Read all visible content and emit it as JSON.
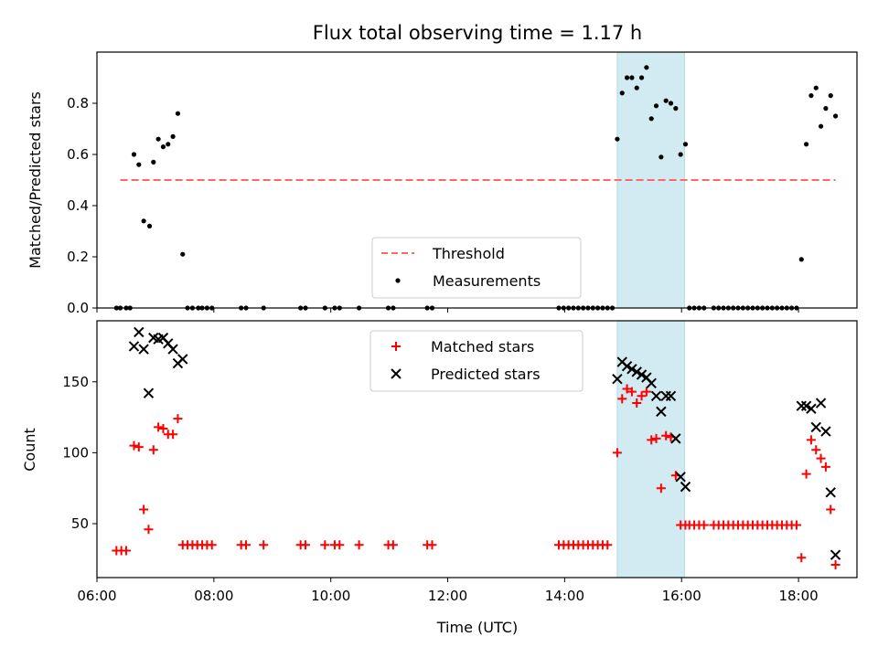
{
  "chart_data": [
    {
      "type": "scatter",
      "title": "Flux total observing time = 1.17 h",
      "xlabel": "",
      "ylabel": "Matched/Predicted stars",
      "xlim": [
        "06:00",
        "19:00"
      ],
      "ylim": [
        0,
        1.0
      ],
      "y_ticks": [
        "0.0",
        "0.2",
        "0.4",
        "0.6",
        "0.8"
      ],
      "highlight_band": {
        "x_start": "14:54",
        "x_end": "16:03",
        "color": "#add8e6"
      },
      "legend": {
        "position": "lower-center",
        "entries": [
          "Threshold",
          "Measurements"
        ]
      },
      "threshold": {
        "name": "Threshold",
        "y": 0.5,
        "x_start": "06:24",
        "x_end": "18:38",
        "color": "#ff6666",
        "style": "dashed"
      },
      "series": [
        {
          "name": "Measurements",
          "color": "#000000",
          "marker": "dot",
          "points": [
            [
              "06:20",
              0.0
            ],
            [
              "06:24",
              0.0
            ],
            [
              "06:30",
              0.0
            ],
            [
              "06:34",
              0.0
            ],
            [
              "06:38",
              0.6
            ],
            [
              "06:43",
              0.56
            ],
            [
              "06:48",
              0.34
            ],
            [
              "06:54",
              0.32
            ],
            [
              "06:58",
              0.57
            ],
            [
              "07:03",
              0.66
            ],
            [
              "07:08",
              0.63
            ],
            [
              "07:13",
              0.64
            ],
            [
              "07:18",
              0.67
            ],
            [
              "07:23",
              0.76
            ],
            [
              "07:28",
              0.21
            ],
            [
              "07:33",
              0.0
            ],
            [
              "07:38",
              0.0
            ],
            [
              "07:44",
              0.0
            ],
            [
              "07:48",
              0.0
            ],
            [
              "07:53",
              0.0
            ],
            [
              "07:58",
              0.0
            ],
            [
              "08:28",
              0.0
            ],
            [
              "08:33",
              0.0
            ],
            [
              "08:51",
              0.0
            ],
            [
              "09:29",
              0.0
            ],
            [
              "09:34",
              0.0
            ],
            [
              "09:54",
              0.0
            ],
            [
              "10:04",
              0.0
            ],
            [
              "10:09",
              0.0
            ],
            [
              "10:29",
              0.0
            ],
            [
              "10:59",
              0.0
            ],
            [
              "11:04",
              0.0
            ],
            [
              "11:39",
              0.0
            ],
            [
              "11:44",
              0.0
            ],
            [
              "13:54",
              0.0
            ],
            [
              "13:59",
              0.0
            ],
            [
              "14:04",
              0.0
            ],
            [
              "14:09",
              0.0
            ],
            [
              "14:14",
              0.0
            ],
            [
              "14:19",
              0.0
            ],
            [
              "14:24",
              0.0
            ],
            [
              "14:29",
              0.0
            ],
            [
              "14:34",
              0.0
            ],
            [
              "14:39",
              0.0
            ],
            [
              "14:44",
              0.0
            ],
            [
              "14:49",
              0.0
            ],
            [
              "14:54",
              0.66
            ],
            [
              "14:59",
              0.84
            ],
            [
              "15:04",
              0.9
            ],
            [
              "15:09",
              0.9
            ],
            [
              "15:14",
              0.86
            ],
            [
              "15:19",
              0.9
            ],
            [
              "15:24",
              0.94
            ],
            [
              "15:29",
              0.74
            ],
            [
              "15:34",
              0.79
            ],
            [
              "15:39",
              0.59
            ],
            [
              "15:44",
              0.81
            ],
            [
              "15:49",
              0.8
            ],
            [
              "15:54",
              0.78
            ],
            [
              "15:59",
              0.6
            ],
            [
              "16:04",
              0.64
            ],
            [
              "16:08",
              0.0
            ],
            [
              "16:13",
              0.0
            ],
            [
              "16:18",
              0.0
            ],
            [
              "16:23",
              0.0
            ],
            [
              "16:33",
              0.0
            ],
            [
              "16:38",
              0.0
            ],
            [
              "16:43",
              0.0
            ],
            [
              "16:48",
              0.0
            ],
            [
              "16:53",
              0.0
            ],
            [
              "16:58",
              0.0
            ],
            [
              "17:03",
              0.0
            ],
            [
              "17:08",
              0.0
            ],
            [
              "17:13",
              0.0
            ],
            [
              "17:18",
              0.0
            ],
            [
              "17:23",
              0.0
            ],
            [
              "17:28",
              0.0
            ],
            [
              "17:33",
              0.0
            ],
            [
              "17:38",
              0.0
            ],
            [
              "17:43",
              0.0
            ],
            [
              "17:48",
              0.0
            ],
            [
              "17:53",
              0.0
            ],
            [
              "17:58",
              0.0
            ],
            [
              "18:03",
              0.19
            ],
            [
              "18:08",
              0.64
            ],
            [
              "18:13",
              0.83
            ],
            [
              "18:18",
              0.86
            ],
            [
              "18:23",
              0.71
            ],
            [
              "18:28",
              0.78
            ],
            [
              "18:33",
              0.83
            ],
            [
              "18:38",
              0.75
            ]
          ]
        }
      ]
    },
    {
      "type": "scatter",
      "title": "",
      "xlabel": "Time (UTC)",
      "ylabel": "Count",
      "xlim": [
        "06:00",
        "19:00"
      ],
      "ylim": [
        12,
        193
      ],
      "x_ticks": [
        "06:00",
        "08:00",
        "10:00",
        "12:00",
        "14:00",
        "16:00",
        "18:00"
      ],
      "y_ticks": [
        "50",
        "100",
        "150"
      ],
      "highlight_band": {
        "x_start": "14:54",
        "x_end": "16:03",
        "color": "#add8e6"
      },
      "legend": {
        "position": "upper-center",
        "entries": [
          "Matched stars",
          "Predicted stars"
        ]
      },
      "series": [
        {
          "name": "Matched stars",
          "color": "#ff0000",
          "marker": "plus",
          "points": [
            [
              "06:20",
              31
            ],
            [
              "06:25",
              31
            ],
            [
              "06:30",
              31
            ],
            [
              "06:38",
              105
            ],
            [
              "06:43",
              104
            ],
            [
              "06:48",
              60
            ],
            [
              "06:53",
              46
            ],
            [
              "06:58",
              102
            ],
            [
              "07:03",
              118
            ],
            [
              "07:08",
              117
            ],
            [
              "07:13",
              113
            ],
            [
              "07:18",
              113
            ],
            [
              "07:23",
              124
            ],
            [
              "07:28",
              35
            ],
            [
              "07:33",
              35
            ],
            [
              "07:38",
              35
            ],
            [
              "07:43",
              35
            ],
            [
              "07:48",
              35
            ],
            [
              "07:53",
              35
            ],
            [
              "07:58",
              35
            ],
            [
              "08:28",
              35
            ],
            [
              "08:33",
              35
            ],
            [
              "08:51",
              35
            ],
            [
              "09:29",
              35
            ],
            [
              "09:34",
              35
            ],
            [
              "09:54",
              35
            ],
            [
              "10:04",
              35
            ],
            [
              "10:09",
              35
            ],
            [
              "10:29",
              35
            ],
            [
              "10:59",
              35
            ],
            [
              "11:04",
              35
            ],
            [
              "11:39",
              35
            ],
            [
              "11:44",
              35
            ],
            [
              "13:54",
              35
            ],
            [
              "13:59",
              35
            ],
            [
              "14:04",
              35
            ],
            [
              "14:09",
              35
            ],
            [
              "14:14",
              35
            ],
            [
              "14:19",
              35
            ],
            [
              "14:24",
              35
            ],
            [
              "14:29",
              35
            ],
            [
              "14:34",
              35
            ],
            [
              "14:39",
              35
            ],
            [
              "14:44",
              35
            ],
            [
              "14:54",
              100
            ],
            [
              "14:59",
              138
            ],
            [
              "15:04",
              145
            ],
            [
              "15:09",
              143
            ],
            [
              "15:14",
              135
            ],
            [
              "15:19",
              140
            ],
            [
              "15:24",
              143
            ],
            [
              "15:29",
              109
            ],
            [
              "15:34",
              110
            ],
            [
              "15:39",
              75
            ],
            [
              "15:44",
              112
            ],
            [
              "15:49",
              111
            ],
            [
              "15:54",
              84
            ],
            [
              "15:59",
              49
            ],
            [
              "16:04",
              49
            ],
            [
              "16:08",
              49
            ],
            [
              "16:13",
              49
            ],
            [
              "16:18",
              49
            ],
            [
              "16:23",
              49
            ],
            [
              "16:33",
              49
            ],
            [
              "16:38",
              49
            ],
            [
              "16:43",
              49
            ],
            [
              "16:48",
              49
            ],
            [
              "16:53",
              49
            ],
            [
              "16:58",
              49
            ],
            [
              "17:03",
              49
            ],
            [
              "17:08",
              49
            ],
            [
              "17:13",
              49
            ],
            [
              "17:18",
              49
            ],
            [
              "17:23",
              49
            ],
            [
              "17:28",
              49
            ],
            [
              "17:33",
              49
            ],
            [
              "17:38",
              49
            ],
            [
              "17:43",
              49
            ],
            [
              "17:48",
              49
            ],
            [
              "17:53",
              49
            ],
            [
              "17:58",
              49
            ],
            [
              "18:03",
              26
            ],
            [
              "18:08",
              85
            ],
            [
              "18:13",
              109
            ],
            [
              "18:18",
              102
            ],
            [
              "18:23",
              96
            ],
            [
              "18:28",
              90
            ],
            [
              "18:33",
              60
            ],
            [
              "18:38",
              21
            ]
          ]
        },
        {
          "name": "Predicted stars",
          "color": "#000000",
          "marker": "x",
          "points": [
            [
              "06:38",
              175
            ],
            [
              "06:43",
              185
            ],
            [
              "06:48",
              173
            ],
            [
              "06:53",
              142
            ],
            [
              "06:58",
              181
            ],
            [
              "07:03",
              180
            ],
            [
              "07:08",
              181
            ],
            [
              "07:13",
              177
            ],
            [
              "07:18",
              173
            ],
            [
              "07:23",
              163
            ],
            [
              "07:28",
              166
            ],
            [
              "14:54",
              152
            ],
            [
              "14:59",
              164
            ],
            [
              "15:04",
              161
            ],
            [
              "15:09",
              159
            ],
            [
              "15:14",
              157
            ],
            [
              "15:19",
              155
            ],
            [
              "15:24",
              153
            ],
            [
              "15:29",
              149
            ],
            [
              "15:34",
              140
            ],
            [
              "15:39",
              129
            ],
            [
              "15:44",
              140
            ],
            [
              "15:49",
              140
            ],
            [
              "15:54",
              110
            ],
            [
              "15:59",
              83
            ],
            [
              "16:04",
              76
            ],
            [
              "18:03",
              133
            ],
            [
              "18:08",
              133
            ],
            [
              "18:13",
              131
            ],
            [
              "18:18",
              118
            ],
            [
              "18:23",
              135
            ],
            [
              "18:28",
              115
            ],
            [
              "18:33",
              72
            ],
            [
              "18:38",
              28
            ]
          ]
        }
      ]
    }
  ]
}
